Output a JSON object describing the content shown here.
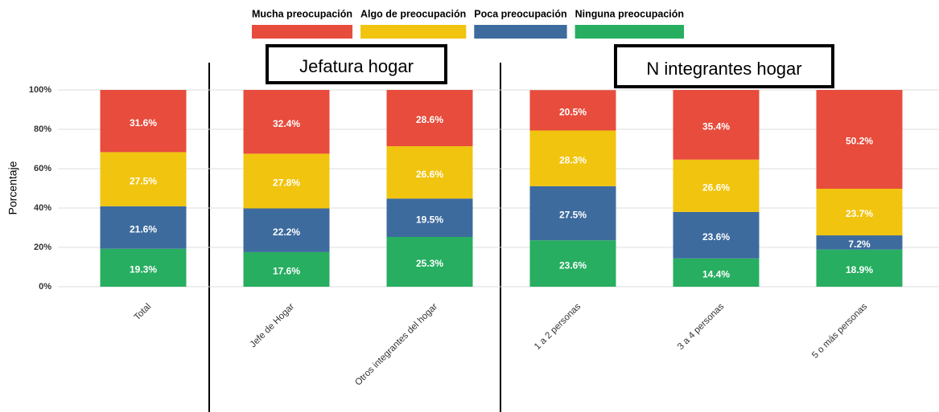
{
  "chart_data": {
    "type": "stacked_bar",
    "y_label": "Porcentaje",
    "annotations": [
      "Jefatura hogar",
      "N integrantes hogar"
    ],
    "categories": [
      "Total",
      "Jefe de Hogar",
      "Otros integrantes del hogar",
      "1 a 2 personas",
      "3 a 4 personas",
      "5 o más personas"
    ],
    "series": [
      {
        "name": "Mucha preocupación",
        "color": "#e74c3c",
        "values": [
          31.6,
          32.4,
          28.6,
          20.5,
          35.4,
          50.2
        ],
        "value_labels": [
          "31.6%",
          "32.4%",
          "28.6%",
          "20.5%",
          "35.4%",
          "50.2%"
        ]
      },
      {
        "name": "Algo de preocupación",
        "color": "#f1c40f",
        "values": [
          27.5,
          27.8,
          26.6,
          28.3,
          26.6,
          23.7
        ],
        "value_labels": [
          "27.5%",
          "27.8%",
          "26.6%",
          "28.3%",
          "26.6%",
          "23.7%"
        ]
      },
      {
        "name": "Poca preocupación",
        "color": "#3d6b9e",
        "values": [
          21.6,
          22.2,
          19.5,
          27.5,
          23.6,
          7.2
        ],
        "value_labels": [
          "21.6%",
          "22.2%",
          "19.5%",
          "27.5%",
          "23.6%",
          "7.2%"
        ]
      },
      {
        "name": "Ninguna preocupación",
        "color": "#27ae60",
        "values": [
          19.3,
          17.6,
          25.3,
          23.6,
          14.4,
          18.9
        ],
        "value_labels": [
          "19.3%",
          "17.6%",
          "25.3%",
          "23.6%",
          "14.4%",
          "18.9%"
        ]
      }
    ],
    "ylim": [
      0,
      100
    ],
    "yticks": [
      {
        "value": 0,
        "label": "0%"
      },
      {
        "value": 20,
        "label": "20%"
      },
      {
        "value": 40,
        "label": "40%"
      },
      {
        "value": 60,
        "label": "60%"
      },
      {
        "value": 80,
        "label": "80%"
      },
      {
        "value": 100,
        "label": "100%"
      }
    ],
    "grid": true,
    "legend": "top"
  }
}
